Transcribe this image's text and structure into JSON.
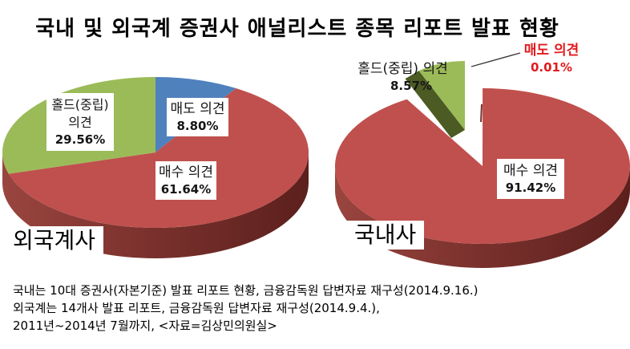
{
  "title": "국내 및 외국계 증권사 애널리스트 종목 리포트 발표 현황",
  "foreign_pie": {
    "name_label": "외국계사",
    "hold": {
      "line1": "홀드(중립)",
      "line2": "의견",
      "pct": "29.56%"
    },
    "sell": {
      "label": "매도 의견",
      "pct": "8.80%"
    },
    "buy": {
      "label": "매수 의견",
      "pct": "61.64%"
    }
  },
  "domestic_pie": {
    "name_label": "국내사",
    "hold": {
      "label": "홀드(중립) 의견",
      "pct": "8.57%"
    },
    "sell": {
      "label": "매도 의견",
      "pct": "0.01%"
    },
    "buy": {
      "label": "매수 의견",
      "pct": "91.42%"
    }
  },
  "footnote": {
    "line1": "국내는 10대 증권사(자본기준) 발표 리포트 현황, 금융감독원 답변자료 재구성(2014.9.16.)",
    "line2": "외국계는 14개사 발표 리포트, 금융감독원 답변자료 재구성(2014.9.4.),",
    "line3": "2011년~2014년 7월까지, <자료=김상민의원실>"
  },
  "colors": {
    "slice_red": "#C0504D",
    "slice_green": "#9BBB59",
    "slice_blue": "#4F81BD",
    "side_red_dark": "#5C201D",
    "side_green_dark": "#4C5B23",
    "sell_label_red": "#E21A1D"
  },
  "chart_data": [
    {
      "type": "pie",
      "style": "3d-pie",
      "title": "외국계사",
      "unit": "%",
      "start_angle_deg": 0,
      "slices": [
        {
          "label": "매도 의견",
          "value": 8.8,
          "color": "#4F81BD",
          "exploded": false
        },
        {
          "label": "매수 의견",
          "value": 61.64,
          "color": "#C0504D",
          "exploded": false
        },
        {
          "label": "홀드(중립) 의견",
          "value": 29.56,
          "color": "#9BBB59",
          "exploded": false
        }
      ]
    },
    {
      "type": "pie",
      "style": "3d-pie",
      "title": "국내사",
      "unit": "%",
      "start_angle_deg": 0,
      "slices": [
        {
          "label": "매도 의견",
          "value": 0.01,
          "color": "#C0504D",
          "exploded": false
        },
        {
          "label": "매수 의견",
          "value": 91.42,
          "color": "#C0504D",
          "exploded": false
        },
        {
          "label": "홀드(중립) 의견",
          "value": 8.57,
          "color": "#9BBB59",
          "exploded": true
        }
      ]
    }
  ]
}
